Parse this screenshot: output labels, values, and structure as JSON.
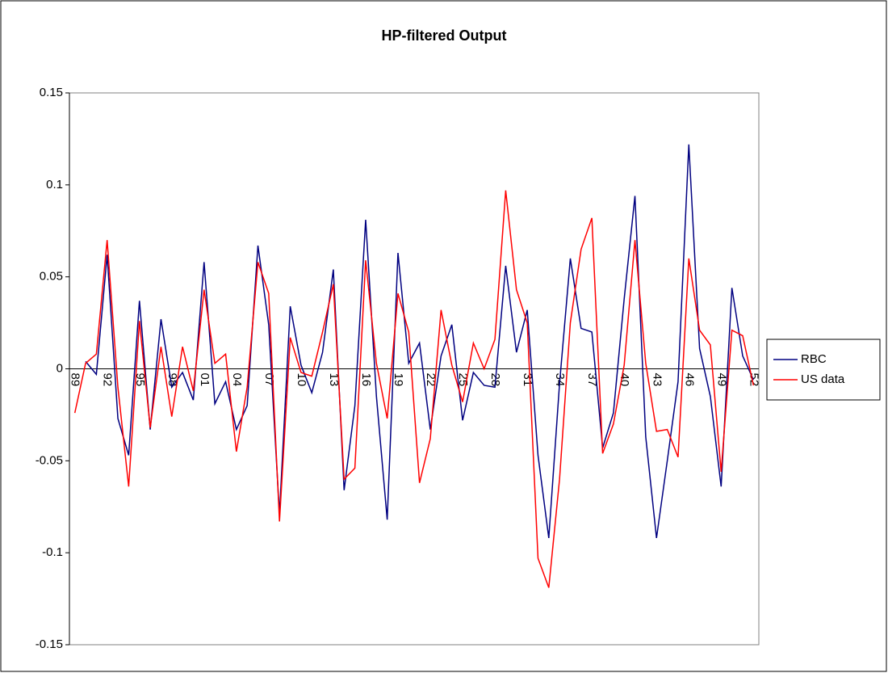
{
  "chart_data": {
    "type": "line",
    "title": "HP-filtered Output",
    "categories": [
      "89",
      null,
      null,
      "92",
      null,
      null,
      "95",
      null,
      null,
      "98",
      null,
      null,
      "01",
      null,
      null,
      "04",
      null,
      null,
      "07",
      null,
      null,
      "10",
      null,
      null,
      "13",
      null,
      null,
      "16",
      null,
      null,
      "19",
      null,
      null,
      "22",
      null,
      null,
      "25",
      null,
      null,
      "28",
      null,
      null,
      "31",
      null,
      null,
      "34",
      null,
      null,
      "37",
      null,
      null,
      "40",
      null,
      null,
      "43",
      null,
      null,
      "46",
      null,
      null,
      "49",
      null,
      null,
      "52"
    ],
    "series": [
      {
        "name": "RBC",
        "color": "#000080",
        "values": [
          null,
          0.004,
          -0.003,
          0.062,
          -0.027,
          -0.047,
          0.037,
          -0.033,
          0.027,
          -0.01,
          -0.002,
          -0.017,
          0.058,
          -0.019,
          -0.007,
          -0.033,
          -0.02,
          0.067,
          0.024,
          -0.079,
          0.034,
          0.002,
          -0.013,
          0.009,
          0.054,
          -0.066,
          -0.02,
          0.081,
          -0.015,
          -0.082,
          0.063,
          0.003,
          0.014,
          -0.033,
          0.007,
          0.024,
          -0.028,
          -0.002,
          -0.009,
          -0.01,
          0.056,
          0.009,
          0.032,
          -0.047,
          -0.092,
          -0.008,
          0.06,
          0.022,
          0.02,
          -0.043,
          -0.024,
          0.038,
          0.094,
          -0.037,
          -0.092,
          -0.05,
          -0.007,
          0.122,
          0.011,
          -0.015,
          -0.064,
          0.044,
          0.007,
          -0.006
        ]
      },
      {
        "name": "US data",
        "color": "#ff0000",
        "values": [
          -0.024,
          0.003,
          0.008,
          0.07,
          -0.01,
          -0.064,
          0.026,
          -0.032,
          0.012,
          -0.026,
          0.012,
          -0.012,
          0.043,
          0.003,
          0.008,
          -0.045,
          -0.01,
          0.058,
          0.041,
          -0.083,
          0.017,
          -0.002,
          -0.004,
          0.02,
          0.046,
          -0.06,
          -0.054,
          0.059,
          0.003,
          -0.027,
          0.041,
          0.02,
          -0.062,
          -0.038,
          0.032,
          0.002,
          -0.018,
          0.014,
          0.0,
          0.016,
          0.097,
          0.043,
          0.025,
          -0.103,
          -0.119,
          -0.06,
          0.025,
          0.065,
          0.082,
          -0.046,
          -0.03,
          0.002,
          0.07,
          0.003,
          -0.034,
          -0.033,
          -0.048,
          0.06,
          0.021,
          0.013,
          -0.056,
          0.021,
          0.018,
          -0.009
        ]
      }
    ],
    "ylim": [
      -0.15,
      0.15
    ],
    "yticks": [
      -0.15,
      -0.1,
      -0.05,
      0,
      0.05,
      0.1,
      0.15
    ],
    "grid": false,
    "legend": "right"
  }
}
